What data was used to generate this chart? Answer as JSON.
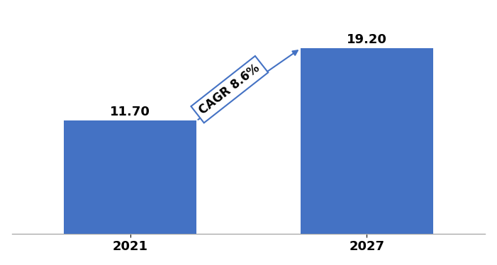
{
  "categories": [
    "2021",
    "2027"
  ],
  "values": [
    11.7,
    19.2
  ],
  "bar_color": "#4472C4",
  "bar_width": 0.28,
  "value_labels": [
    "11.70",
    "19.20"
  ],
  "cagr_text": "CAGR 8.6%",
  "ylim": [
    0,
    23
  ],
  "x_positions": [
    0.25,
    0.75
  ],
  "xlim": [
    0.0,
    1.0
  ],
  "background_color": "#ffffff",
  "label_fontsize": 13,
  "tick_fontsize": 13,
  "cagr_fontsize": 12
}
